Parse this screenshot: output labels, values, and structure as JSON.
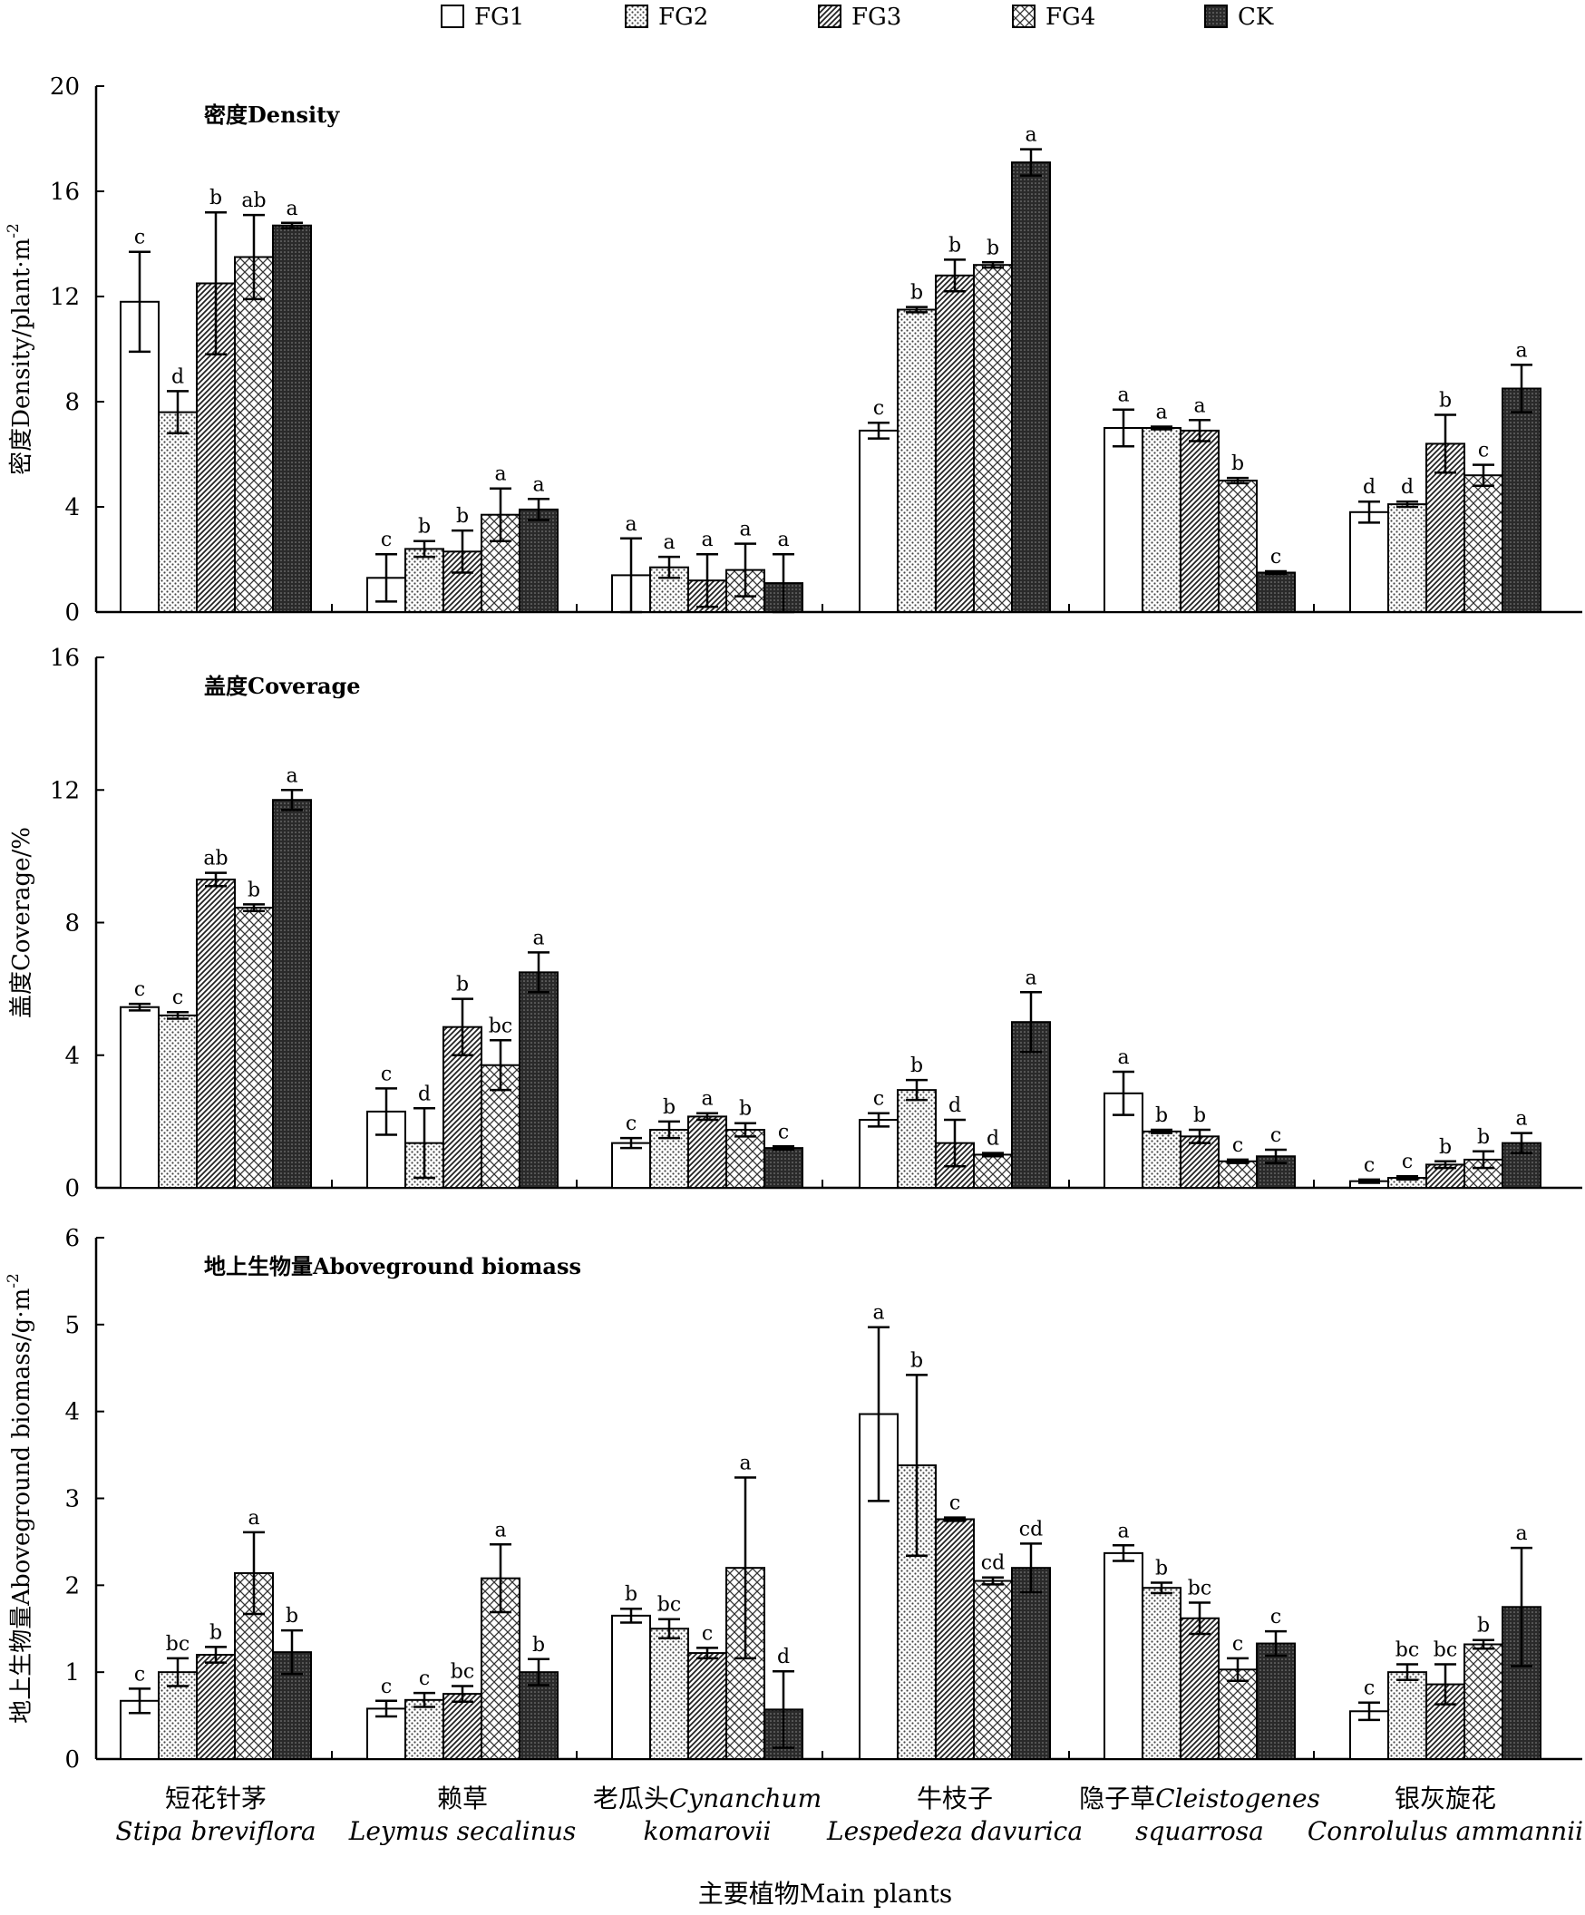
{
  "legend": [
    {
      "key": "FG1",
      "label": "FG1",
      "pattern": "white"
    },
    {
      "key": "FG2",
      "label": "FG2",
      "pattern": "dots"
    },
    {
      "key": "FG3",
      "label": "FG3",
      "pattern": "diag"
    },
    {
      "key": "FG4",
      "label": "FG4",
      "pattern": "cross"
    },
    {
      "key": "CK",
      "label": "CK",
      "pattern": "dark"
    }
  ],
  "categories": [
    {
      "zh": "短花针茅",
      "sci": "Stipa breviflora"
    },
    {
      "zh": "赖草",
      "sci": "Leymus secalinus"
    },
    {
      "zh": "老瓜头",
      "sci_inline": "Cynanchum",
      "sci": "komarovii"
    },
    {
      "zh": "牛枝子",
      "sci": "Lespedeza davurica"
    },
    {
      "zh": "隐子草",
      "sci_inline": "Cleistogenes",
      "sci": "squarrosa"
    },
    {
      "zh": "银灰旋花",
      "sci": "Conrolulus ammannii"
    }
  ],
  "xlabel": "主要植物Main plants",
  "chart_data": [
    {
      "type": "bar",
      "title": "密度Density",
      "ylabel": "密度Density/plant·m",
      "ylabel_sup": "-2",
      "ylim": [
        0,
        20
      ],
      "yticks": [
        0,
        4,
        8,
        12,
        16,
        20
      ],
      "series": [
        {
          "name": "FG1",
          "values": [
            11.8,
            1.3,
            1.4,
            6.9,
            7.0,
            3.8
          ],
          "errors": [
            1.9,
            0.9,
            1.4,
            0.3,
            0.7,
            0.4
          ],
          "letters": [
            "c",
            "c",
            "a",
            "c",
            "a",
            "d"
          ]
        },
        {
          "name": "FG2",
          "values": [
            7.6,
            2.4,
            1.7,
            11.5,
            7.0,
            4.1
          ],
          "errors": [
            0.8,
            0.3,
            0.4,
            0.1,
            0.05,
            0.1
          ],
          "letters": [
            "d",
            "b",
            "a",
            "b",
            "a",
            "d"
          ]
        },
        {
          "name": "FG3",
          "values": [
            12.5,
            2.3,
            1.2,
            12.8,
            6.9,
            6.4
          ],
          "errors": [
            2.7,
            0.8,
            1.0,
            0.6,
            0.4,
            1.1
          ],
          "letters": [
            "b",
            "b",
            "a",
            "b",
            "a",
            "b"
          ]
        },
        {
          "name": "FG4",
          "values": [
            13.5,
            3.7,
            1.6,
            13.2,
            5.0,
            5.2
          ],
          "errors": [
            1.6,
            1.0,
            1.0,
            0.1,
            0.1,
            0.4
          ],
          "letters": [
            "ab",
            "a",
            "a",
            "b",
            "b",
            "c"
          ]
        },
        {
          "name": "CK",
          "values": [
            14.7,
            3.9,
            1.1,
            17.1,
            1.5,
            8.5
          ],
          "errors": [
            0.1,
            0.4,
            1.1,
            0.5,
            0.05,
            0.9
          ],
          "letters": [
            "a",
            "a",
            "a",
            "a",
            "c",
            "a"
          ]
        }
      ]
    },
    {
      "type": "bar",
      "title": "盖度Coverage",
      "ylabel": "盖度Coverage/%",
      "ylim": [
        0,
        16
      ],
      "yticks": [
        0,
        4,
        8,
        12,
        16
      ],
      "series": [
        {
          "name": "FG1",
          "values": [
            5.45,
            2.3,
            1.35,
            2.05,
            2.85,
            0.2
          ],
          "errors": [
            0.1,
            0.7,
            0.15,
            0.2,
            0.65,
            0.05
          ],
          "letters": [
            "c",
            "c",
            "c",
            "c",
            "a",
            "c"
          ]
        },
        {
          "name": "FG2",
          "values": [
            5.2,
            1.35,
            1.75,
            2.95,
            1.7,
            0.3
          ],
          "errors": [
            0.1,
            1.05,
            0.25,
            0.3,
            0.05,
            0.05
          ],
          "letters": [
            "c",
            "d",
            "b",
            "b",
            "b",
            "c"
          ]
        },
        {
          "name": "FG3",
          "values": [
            9.3,
            4.85,
            2.15,
            1.35,
            1.55,
            0.7
          ],
          "errors": [
            0.2,
            0.85,
            0.1,
            0.7,
            0.2,
            0.1
          ],
          "letters": [
            "ab",
            "b",
            "a",
            "d",
            "b",
            "b"
          ]
        },
        {
          "name": "FG4",
          "values": [
            8.45,
            3.7,
            1.75,
            1.0,
            0.8,
            0.85
          ],
          "errors": [
            0.1,
            0.75,
            0.2,
            0.05,
            0.05,
            0.25
          ],
          "letters": [
            "b",
            "bc",
            "b",
            "d",
            "c",
            "b"
          ]
        },
        {
          "name": "CK",
          "values": [
            11.7,
            6.5,
            1.2,
            5.0,
            0.95,
            1.35
          ],
          "errors": [
            0.3,
            0.6,
            0.05,
            0.9,
            0.2,
            0.3
          ],
          "letters": [
            "a",
            "a",
            "c",
            "a",
            "c",
            "a"
          ]
        }
      ]
    },
    {
      "type": "bar",
      "title": "地上生物量Aboveground biomass",
      "ylabel": "地上生物量Aboveground biomass/g·m",
      "ylabel_sup": "-2",
      "ylim": [
        0,
        6
      ],
      "yticks": [
        0,
        1,
        2,
        3,
        4,
        5,
        6
      ],
      "series": [
        {
          "name": "FG1",
          "values": [
            0.67,
            0.58,
            1.65,
            3.97,
            2.37,
            0.55
          ],
          "errors": [
            0.14,
            0.09,
            0.08,
            1.0,
            0.09,
            0.1
          ],
          "letters": [
            "c",
            "c",
            "b",
            "a",
            "a",
            "c"
          ]
        },
        {
          "name": "FG2",
          "values": [
            1.0,
            0.68,
            1.5,
            3.38,
            1.97,
            1.0
          ],
          "errors": [
            0.16,
            0.08,
            0.11,
            1.04,
            0.06,
            0.09
          ],
          "letters": [
            "bc",
            "c",
            "bc",
            "b",
            "b",
            "bc"
          ]
        },
        {
          "name": "FG3",
          "values": [
            1.2,
            0.75,
            1.22,
            2.76,
            1.62,
            0.86
          ],
          "errors": [
            0.09,
            0.09,
            0.06,
            0.02,
            0.18,
            0.23
          ],
          "letters": [
            "b",
            "bc",
            "c",
            "c",
            "bc",
            "bc"
          ]
        },
        {
          "name": "FG4",
          "values": [
            2.14,
            2.08,
            2.2,
            2.05,
            1.03,
            1.32
          ],
          "errors": [
            0.47,
            0.39,
            1.04,
            0.04,
            0.13,
            0.05
          ],
          "letters": [
            "a",
            "a",
            "a",
            "cd",
            "c",
            "b"
          ]
        },
        {
          "name": "CK",
          "values": [
            1.23,
            1.0,
            0.57,
            2.2,
            1.33,
            1.75
          ],
          "errors": [
            0.25,
            0.15,
            0.44,
            0.28,
            0.14,
            0.68
          ],
          "letters": [
            "b",
            "b",
            "d",
            "cd",
            "c",
            "a"
          ]
        }
      ]
    }
  ]
}
